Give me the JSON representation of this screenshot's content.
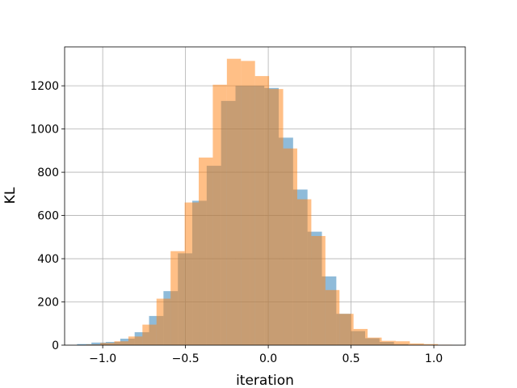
{
  "chart_data": {
    "type": "bar",
    "title": "",
    "xlabel": "iteration",
    "ylabel": "KL",
    "xlim": [
      -1.23,
      1.19
    ],
    "ylim": [
      0,
      1380
    ],
    "grid": true,
    "x_ticks": [
      -1.0,
      -0.5,
      0.0,
      0.5,
      1.0
    ],
    "x_tick_labels": [
      "−1.0",
      "−0.5",
      "0.0",
      "0.5",
      "1.0"
    ],
    "y_ticks": [
      0,
      200,
      400,
      600,
      800,
      1000,
      1200
    ],
    "y_tick_labels": [
      "0",
      "200",
      "400",
      "600",
      "800",
      "1000",
      "1200"
    ],
    "series": [
      {
        "color": "#1f77b4",
        "alpha": 0.5,
        "bins": [
          {
            "x0": -1.155,
            "x1": -1.068,
            "count": 5
          },
          {
            "x0": -1.068,
            "x1": -0.981,
            "count": 12
          },
          {
            "x0": -0.981,
            "x1": -0.894,
            "count": 15
          },
          {
            "x0": -0.894,
            "x1": -0.807,
            "count": 30
          },
          {
            "x0": -0.807,
            "x1": -0.72,
            "count": 60
          },
          {
            "x0": -0.72,
            "x1": -0.633,
            "count": 135
          },
          {
            "x0": -0.633,
            "x1": -0.546,
            "count": 250
          },
          {
            "x0": -0.546,
            "x1": -0.459,
            "count": 425
          },
          {
            "x0": -0.459,
            "x1": -0.372,
            "count": 668
          },
          {
            "x0": -0.372,
            "x1": -0.285,
            "count": 830
          },
          {
            "x0": -0.285,
            "x1": -0.198,
            "count": 1130
          },
          {
            "x0": -0.198,
            "x1": -0.111,
            "count": 1200
          },
          {
            "x0": -0.111,
            "x1": -0.024,
            "count": 1200
          },
          {
            "x0": -0.024,
            "x1": 0.063,
            "count": 1190
          },
          {
            "x0": 0.063,
            "x1": 0.15,
            "count": 960
          },
          {
            "x0": 0.15,
            "x1": 0.237,
            "count": 720
          },
          {
            "x0": 0.237,
            "x1": 0.324,
            "count": 525
          },
          {
            "x0": 0.324,
            "x1": 0.411,
            "count": 318
          },
          {
            "x0": 0.411,
            "x1": 0.498,
            "count": 145
          },
          {
            "x0": 0.498,
            "x1": 0.585,
            "count": 65
          },
          {
            "x0": 0.585,
            "x1": 0.672,
            "count": 32
          },
          {
            "x0": 0.672,
            "x1": 0.759,
            "count": 15
          },
          {
            "x0": 0.759,
            "x1": 0.846,
            "count": 5
          },
          {
            "x0": 0.846,
            "x1": 0.933,
            "count": 2
          }
        ]
      },
      {
        "color": "#ff7f0e",
        "alpha": 0.5,
        "bins": [
          {
            "x0": -1.1,
            "x1": -1.015,
            "count": 3
          },
          {
            "x0": -1.015,
            "x1": -0.93,
            "count": 10
          },
          {
            "x0": -0.93,
            "x1": -0.845,
            "count": 18
          },
          {
            "x0": -0.845,
            "x1": -0.76,
            "count": 40
          },
          {
            "x0": -0.76,
            "x1": -0.675,
            "count": 95
          },
          {
            "x0": -0.675,
            "x1": -0.59,
            "count": 215
          },
          {
            "x0": -0.59,
            "x1": -0.505,
            "count": 435
          },
          {
            "x0": -0.505,
            "x1": -0.42,
            "count": 660
          },
          {
            "x0": -0.42,
            "x1": -0.335,
            "count": 868
          },
          {
            "x0": -0.335,
            "x1": -0.25,
            "count": 1205
          },
          {
            "x0": -0.25,
            "x1": -0.165,
            "count": 1325
          },
          {
            "x0": -0.165,
            "x1": -0.08,
            "count": 1315
          },
          {
            "x0": -0.08,
            "x1": 0.005,
            "count": 1245
          },
          {
            "x0": 0.005,
            "x1": 0.09,
            "count": 1185
          },
          {
            "x0": 0.09,
            "x1": 0.175,
            "count": 910
          },
          {
            "x0": 0.175,
            "x1": 0.26,
            "count": 675
          },
          {
            "x0": 0.26,
            "x1": 0.345,
            "count": 505
          },
          {
            "x0": 0.345,
            "x1": 0.43,
            "count": 255
          },
          {
            "x0": 0.43,
            "x1": 0.515,
            "count": 145
          },
          {
            "x0": 0.515,
            "x1": 0.6,
            "count": 75
          },
          {
            "x0": 0.6,
            "x1": 0.685,
            "count": 35
          },
          {
            "x0": 0.685,
            "x1": 0.77,
            "count": 20
          },
          {
            "x0": 0.77,
            "x1": 0.855,
            "count": 18
          },
          {
            "x0": 0.855,
            "x1": 0.94,
            "count": 8
          },
          {
            "x0": 0.94,
            "x1": 1.025,
            "count": 5
          },
          {
            "x0": 1.025,
            "x1": 1.11,
            "count": 2
          }
        ]
      }
    ]
  }
}
